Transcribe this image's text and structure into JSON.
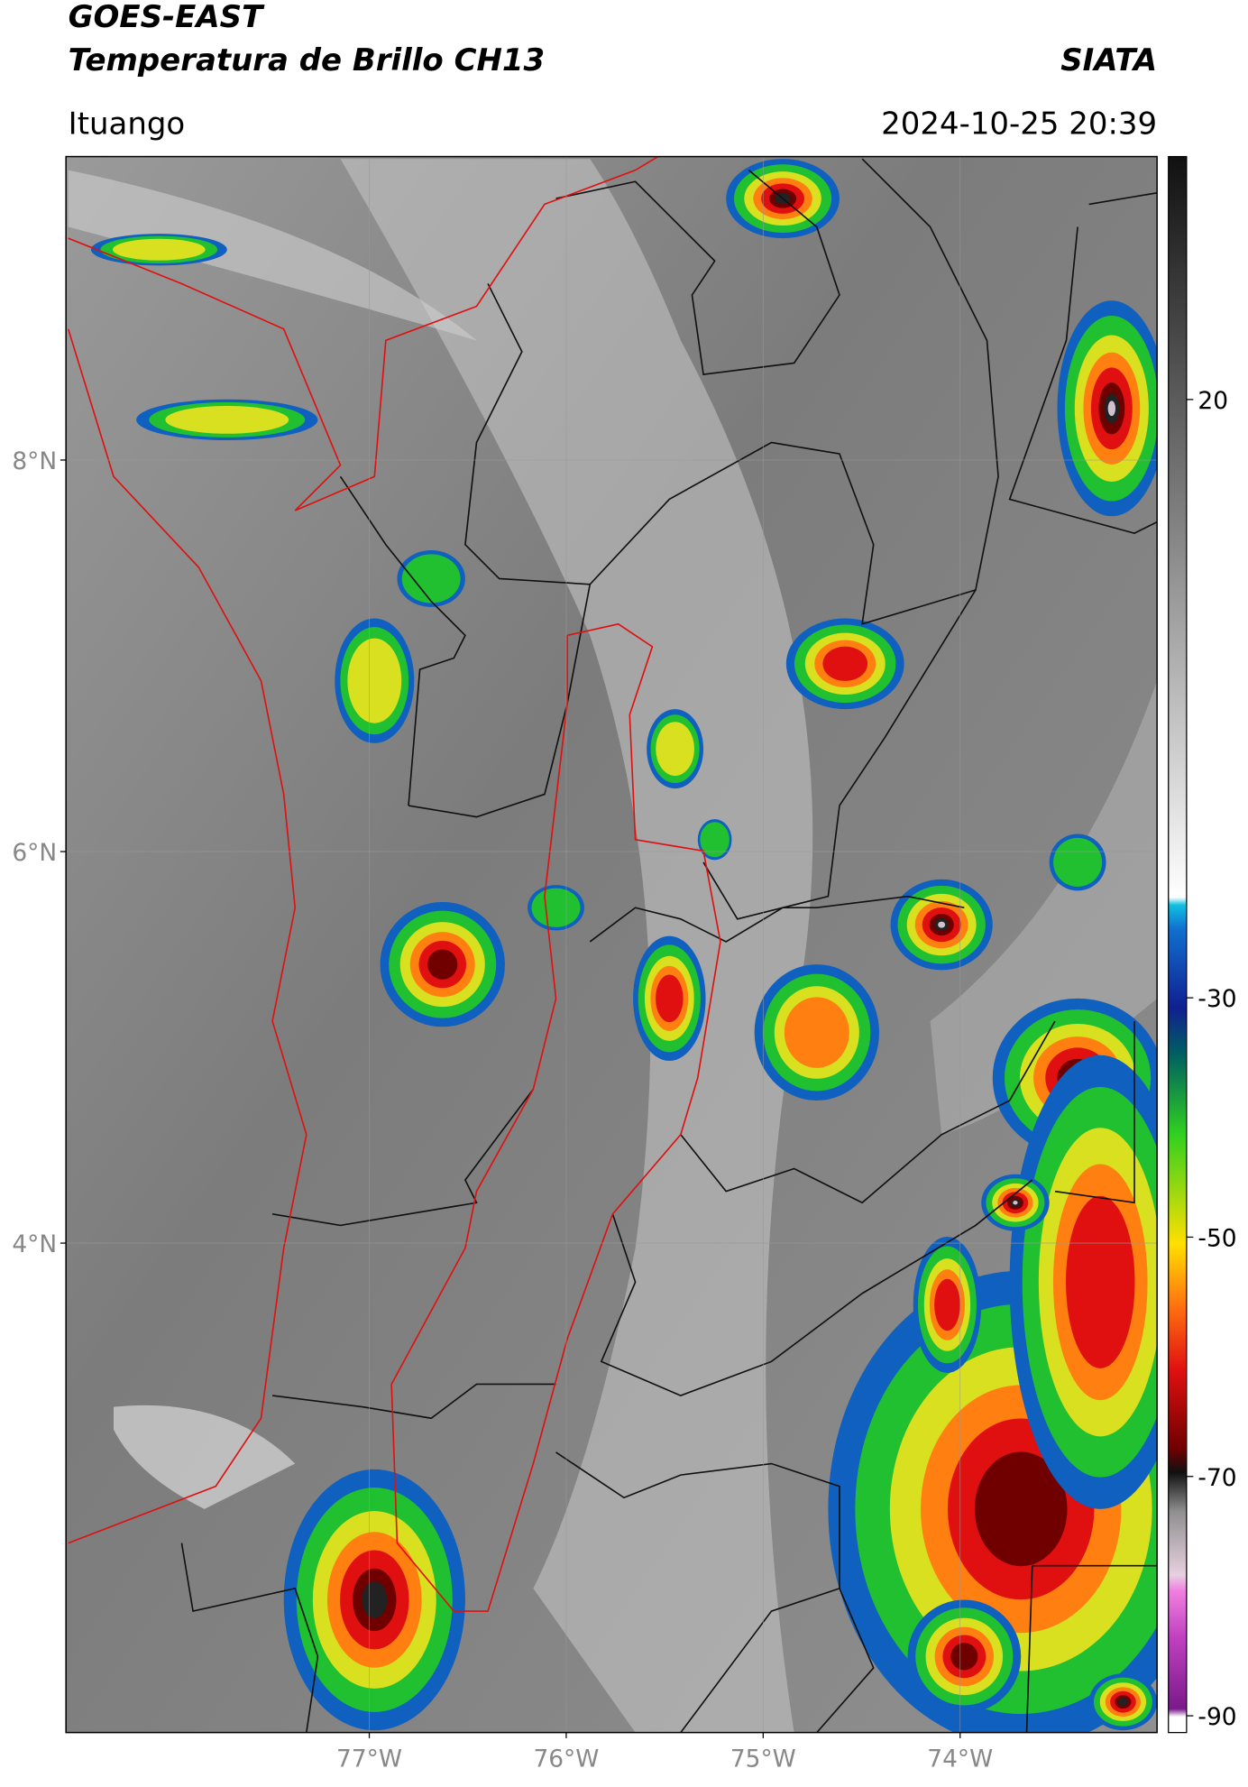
{
  "header": {
    "title": "GOES-EAST",
    "subtitle": "Temperatura de Brillo CH13",
    "source": "SIATA",
    "location": "Ituango",
    "datetime": "2024-10-25 20:39"
  },
  "map": {
    "lat_range": [
      1.5,
      9.55
    ],
    "lon_range": [
      -78.54,
      -73.0
    ],
    "lat_ticks": [
      {
        "value": 8,
        "label": "8°N"
      },
      {
        "value": 6,
        "label": "6°N"
      },
      {
        "value": 4,
        "label": "4°N"
      }
    ],
    "lon_ticks": [
      {
        "value": -77,
        "label": "77°W"
      },
      {
        "value": -76,
        "label": "76°W"
      },
      {
        "value": -75,
        "label": "75°W"
      },
      {
        "value": -74,
        "label": "74°W"
      }
    ]
  },
  "colorbar": {
    "range": [
      -91.4,
      40.3
    ],
    "ticks": [
      20,
      -30,
      -50,
      -70,
      -90
    ]
  }
}
